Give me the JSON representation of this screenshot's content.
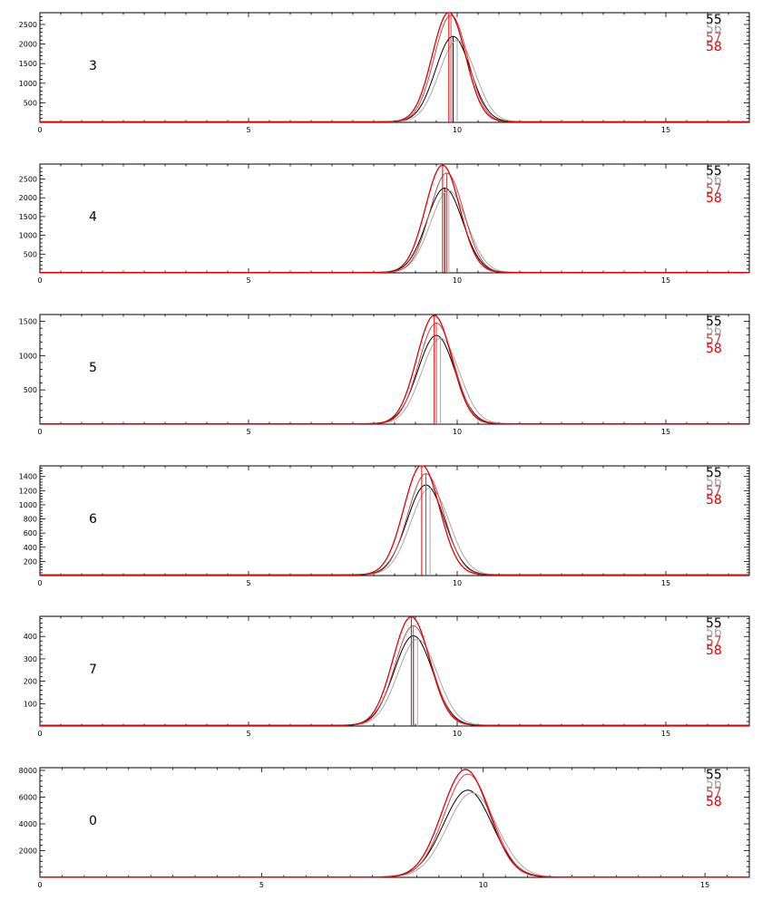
{
  "colors": {
    "s55": "#000000",
    "s56": "#a8a8a8",
    "s57": "#b05050",
    "s58": "#e00000",
    "axis": "#000000",
    "background": "#ffffff"
  },
  "legend": [
    "55",
    "56",
    "57",
    "58"
  ],
  "chart_data": [
    {
      "type": "line",
      "label": "3",
      "xlim": [
        0,
        17
      ],
      "ylim": [
        0,
        2800
      ],
      "xticks": [
        0,
        5,
        10,
        15
      ],
      "yticks": [
        500,
        1000,
        1500,
        2000,
        2500
      ],
      "series": [
        {
          "name": "55",
          "mu": 9.9,
          "sigma": 0.42,
          "amp": 2180,
          "tail": 15,
          "peak_marker": 9.9
        },
        {
          "name": "56",
          "mu": 10.0,
          "sigma": 0.43,
          "amp": 2080,
          "tail": 15,
          "peak_marker": 10.0
        },
        {
          "name": "57",
          "mu": 9.85,
          "sigma": 0.4,
          "amp": 2720,
          "tail": 15,
          "peak_marker": 9.85
        },
        {
          "name": "58",
          "mu": 9.8,
          "sigma": 0.4,
          "amp": 2790,
          "tail": 15,
          "peak_marker": 9.8
        }
      ]
    },
    {
      "type": "line",
      "label": "4",
      "xlim": [
        0,
        17
      ],
      "ylim": [
        0,
        2900
      ],
      "xticks": [
        0,
        5,
        10,
        15
      ],
      "yticks": [
        500,
        1000,
        1500,
        2000,
        2500
      ],
      "series": [
        {
          "name": "55",
          "mu": 9.7,
          "sigma": 0.43,
          "amp": 2250,
          "tail": 10,
          "peak_marker": 9.7
        },
        {
          "name": "56",
          "mu": 9.8,
          "sigma": 0.44,
          "amp": 2180,
          "tail": 10,
          "peak_marker": 9.8
        },
        {
          "name": "57",
          "mu": 9.75,
          "sigma": 0.41,
          "amp": 2650,
          "tail": 10,
          "peak_marker": 9.75
        },
        {
          "name": "58",
          "mu": 9.65,
          "sigma": 0.41,
          "amp": 2860,
          "tail": 10,
          "peak_marker": 9.65
        }
      ]
    },
    {
      "type": "line",
      "label": "5",
      "xlim": [
        0,
        17
      ],
      "ylim": [
        0,
        1600
      ],
      "xticks": [
        0,
        5,
        10,
        15
      ],
      "yticks": [
        500,
        1000,
        1500
      ],
      "series": [
        {
          "name": "55",
          "mu": 9.5,
          "sigma": 0.44,
          "amp": 1290,
          "tail": 6,
          "peak_marker": 9.5
        },
        {
          "name": "56",
          "mu": 9.6,
          "sigma": 0.45,
          "amp": 1250,
          "tail": 6,
          "peak_marker": 9.6
        },
        {
          "name": "57",
          "mu": 9.5,
          "sigma": 0.42,
          "amp": 1470,
          "tail": 6,
          "peak_marker": 9.5
        },
        {
          "name": "58",
          "mu": 9.45,
          "sigma": 0.42,
          "amp": 1580,
          "tail": 6,
          "peak_marker": 9.45
        }
      ]
    },
    {
      "type": "line",
      "label": "6",
      "xlim": [
        0,
        17
      ],
      "ylim": [
        0,
        1550
      ],
      "xticks": [
        0,
        5,
        10,
        15
      ],
      "yticks": [
        200,
        400,
        600,
        800,
        1000,
        1200,
        1400
      ],
      "series": [
        {
          "name": "55",
          "mu": 9.25,
          "sigma": 0.45,
          "amp": 1270,
          "tail": 10,
          "peak_marker": 9.25
        },
        {
          "name": "56",
          "mu": 9.35,
          "sigma": 0.46,
          "amp": 1230,
          "tail": 10,
          "peak_marker": 9.35
        },
        {
          "name": "57",
          "mu": 9.25,
          "sigma": 0.43,
          "amp": 1430,
          "tail": 10,
          "peak_marker": 9.25
        },
        {
          "name": "58",
          "mu": 9.15,
          "sigma": 0.43,
          "amp": 1550,
          "tail": 10,
          "peak_marker": 9.15
        }
      ]
    },
    {
      "type": "line",
      "label": "7",
      "xlim": [
        0,
        17
      ],
      "ylim": [
        0,
        490
      ],
      "xticks": [
        0,
        5,
        10,
        15
      ],
      "yticks": [
        100,
        200,
        300,
        400
      ],
      "series": [
        {
          "name": "55",
          "mu": 8.95,
          "sigma": 0.46,
          "amp": 400,
          "tail": 3,
          "peak_marker": 8.95
        },
        {
          "name": "56",
          "mu": 9.05,
          "sigma": 0.47,
          "amp": 385,
          "tail": 3,
          "peak_marker": 9.05
        },
        {
          "name": "57",
          "mu": 8.95,
          "sigma": 0.44,
          "amp": 445,
          "tail": 3,
          "peak_marker": 8.95
        },
        {
          "name": "58",
          "mu": 8.9,
          "sigma": 0.44,
          "amp": 485,
          "tail": 3,
          "peak_marker": 8.9
        }
      ]
    },
    {
      "type": "line",
      "label": "0",
      "xlim": [
        0,
        16
      ],
      "ylim": [
        0,
        8200
      ],
      "xticks": [
        0,
        5,
        10,
        15
      ],
      "yticks": [
        2000,
        4000,
        6000,
        8000
      ],
      "series": [
        {
          "name": "55",
          "mu": 9.65,
          "sigma": 0.55,
          "amp": 6500,
          "tail": 20
        },
        {
          "name": "56",
          "mu": 9.75,
          "sigma": 0.56,
          "amp": 6300,
          "tail": 20
        },
        {
          "name": "57",
          "mu": 9.65,
          "sigma": 0.53,
          "amp": 7700,
          "tail": 20
        },
        {
          "name": "58",
          "mu": 9.6,
          "sigma": 0.53,
          "amp": 8050,
          "tail": 20
        }
      ]
    }
  ]
}
